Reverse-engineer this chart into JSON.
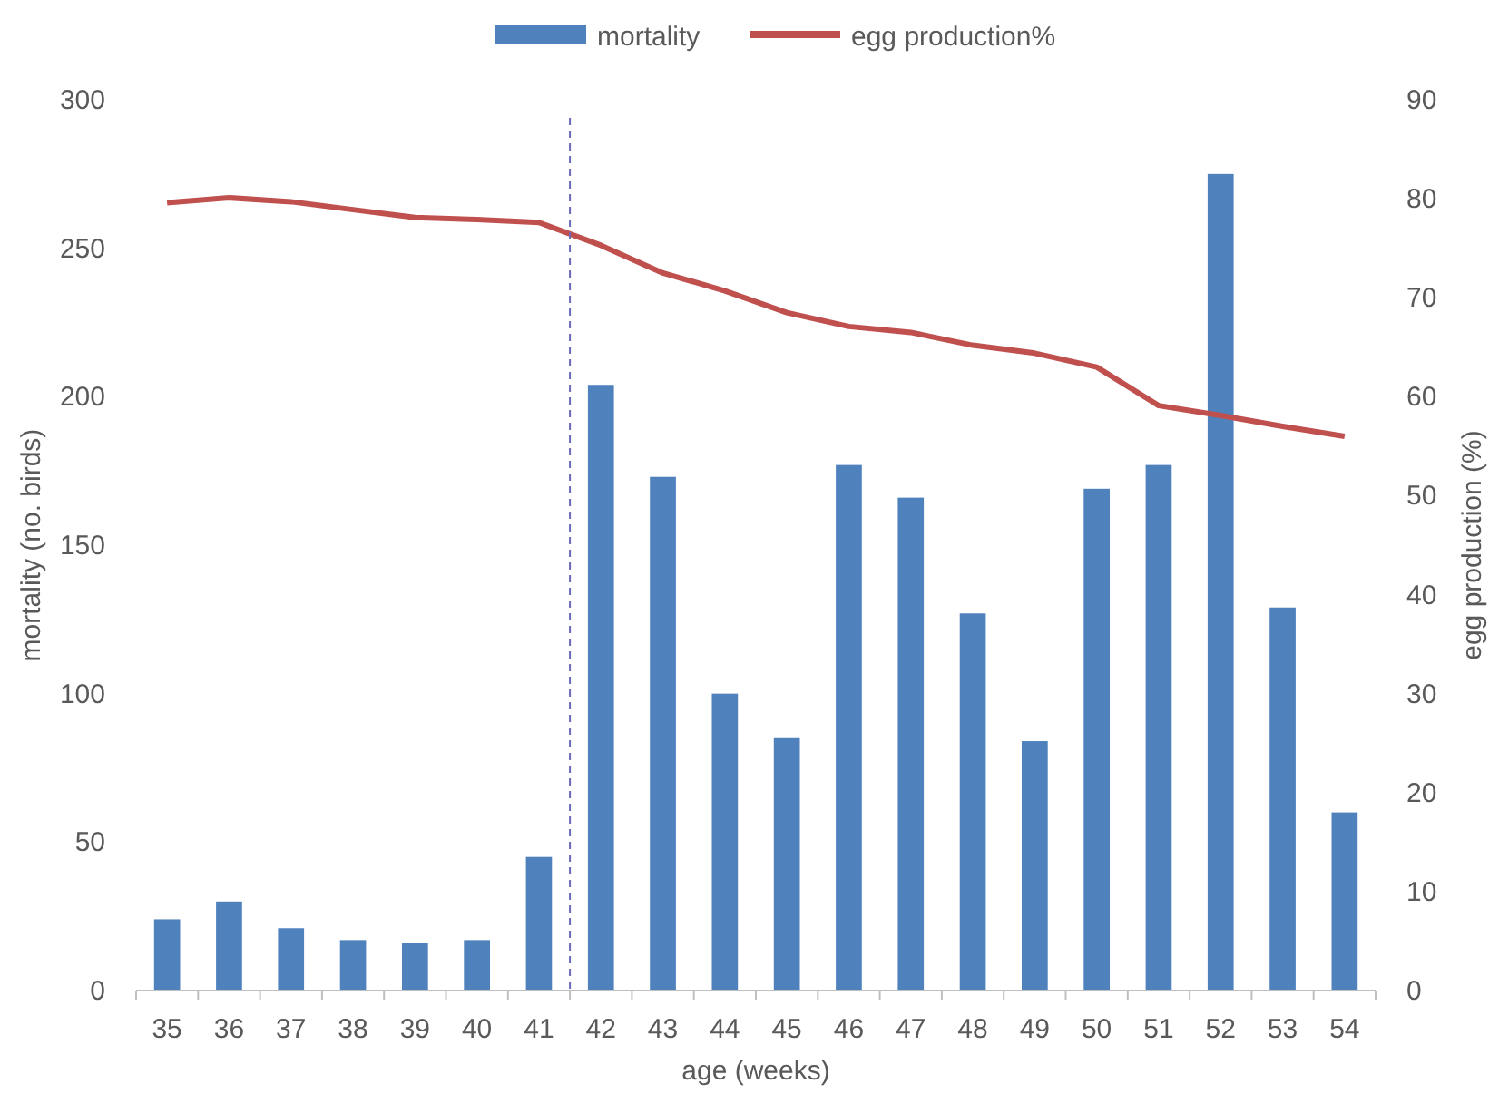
{
  "chart_data": {
    "type": "bar",
    "xlabel": "age (weeks)",
    "ylabel": "mortality (no. birds)",
    "y2label": "egg production (%)",
    "x": [
      35,
      36,
      37,
      38,
      39,
      40,
      41,
      42,
      43,
      44,
      45,
      46,
      47,
      48,
      49,
      50,
      51,
      52,
      53,
      54
    ],
    "xlim": [
      34.5,
      54.5
    ],
    "xticks": [
      35,
      36,
      37,
      38,
      39,
      40,
      41,
      42,
      43,
      44,
      45,
      46,
      47,
      48,
      49,
      50,
      51,
      52,
      53,
      54
    ],
    "ylim": [
      0,
      300
    ],
    "yticks": [
      0,
      50,
      100,
      150,
      200,
      250,
      300
    ],
    "y2lim": [
      0,
      90
    ],
    "y2ticks": [
      0,
      10,
      20,
      30,
      40,
      50,
      60,
      70,
      80,
      90
    ],
    "series": [
      {
        "name": "mortality",
        "color": "#4f81bd",
        "values": [
          24,
          30,
          21,
          17,
          16,
          17,
          45,
          204,
          173,
          100,
          85,
          177,
          166,
          127,
          84,
          169,
          177,
          275,
          129,
          60
        ]
      },
      {
        "name": "egg production%",
        "type": "line",
        "axis": "y2",
        "color": "#c0504d",
        "values": [
          79.6,
          80.1,
          79.7,
          78.9,
          78.1,
          77.9,
          77.6,
          75.3,
          72.5,
          70.7,
          68.5,
          67.1,
          66.5,
          65.2,
          64.4,
          63.0,
          59.1,
          58.1,
          57.0,
          56.0
        ]
      }
    ],
    "ref_lines": [
      {
        "axis": "x",
        "value": 41.5,
        "color": "#6a6ab8",
        "line_style": "dashed"
      }
    ],
    "legend": "top",
    "grid": false,
    "marker": "none"
  }
}
